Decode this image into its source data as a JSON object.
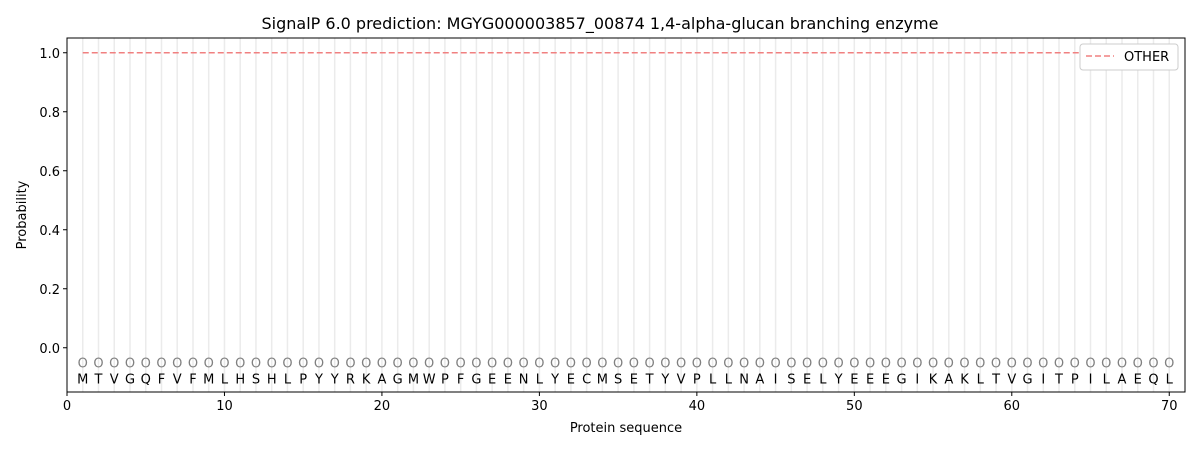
{
  "chart_data": {
    "type": "line",
    "title": "SignalP 6.0 prediction: MGYG000003857_00874 1,4-alpha-glucan branching enzyme",
    "xlabel": "Protein sequence",
    "ylabel": "Probability",
    "xlim": [
      0,
      71
    ],
    "ylim": [
      -0.15,
      1.05
    ],
    "xticks": [
      0,
      10,
      20,
      30,
      40,
      50,
      60,
      70
    ],
    "yticks": [
      0.0,
      0.2,
      0.4,
      0.6,
      0.8,
      1.0
    ],
    "sequence": [
      "M",
      "T",
      "V",
      "G",
      "Q",
      "F",
      "V",
      "F",
      "M",
      "L",
      "H",
      "S",
      "H",
      "L",
      "P",
      "Y",
      "Y",
      "R",
      "K",
      "A",
      "G",
      "M",
      "W",
      "P",
      "F",
      "G",
      "E",
      "E",
      "N",
      "L",
      "Y",
      "E",
      "C",
      "M",
      "S",
      "E",
      "T",
      "Y",
      "V",
      "P",
      "L",
      "L",
      "N",
      "A",
      "I",
      "S",
      "E",
      "L",
      "Y",
      "E",
      "E",
      "E",
      "G",
      "I",
      "K",
      "A",
      "K",
      "L",
      "T",
      "V",
      "G",
      "I",
      "T",
      "P",
      "I",
      "L",
      "A",
      "E",
      "Q",
      "L"
    ],
    "predicted_label": "O",
    "series": [
      {
        "name": "OTHER",
        "color": "#f08080",
        "style": "dashed",
        "x_start": 1,
        "x_end": 70,
        "value": 1.0
      }
    ],
    "legend": {
      "placement": "top-right",
      "entries": [
        "OTHER"
      ]
    },
    "grid": "vertical lines at each residue"
  }
}
